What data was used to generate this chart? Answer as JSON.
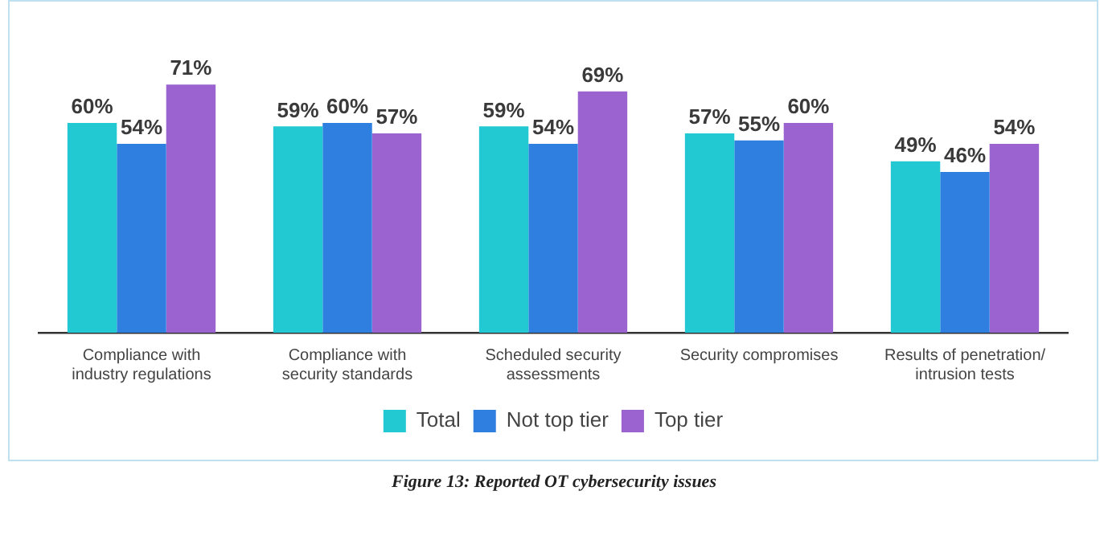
{
  "chart_data": {
    "type": "bar",
    "title": "Figure 13: Reported OT cybersecurity issues",
    "categories": [
      "Compliance with\nindustry regulations",
      "Compliance with\nsecurity standards",
      "Scheduled security\nassessments",
      "Security compromises",
      "Results of penetration/\nintrusion tests"
    ],
    "series": [
      {
        "name": "Total",
        "color": "#22c8d2",
        "values": [
          60,
          59,
          59,
          57,
          49
        ],
        "value_labels": [
          "60%",
          "59%",
          "59%",
          "57%",
          "49%"
        ]
      },
      {
        "name": "Not top tier",
        "color": "#2f7fe0",
        "values": [
          54,
          60,
          54,
          55,
          46
        ],
        "value_labels": [
          "54%",
          "60%",
          "54%",
          "55%",
          "46%"
        ]
      },
      {
        "name": "Top tier",
        "color": "#9a63cf",
        "values": [
          71,
          57,
          69,
          60,
          54
        ],
        "value_labels": [
          "71%",
          "57%",
          "69%",
          "60%",
          "54%"
        ]
      }
    ],
    "legend": "bottom",
    "grid": false
  }
}
